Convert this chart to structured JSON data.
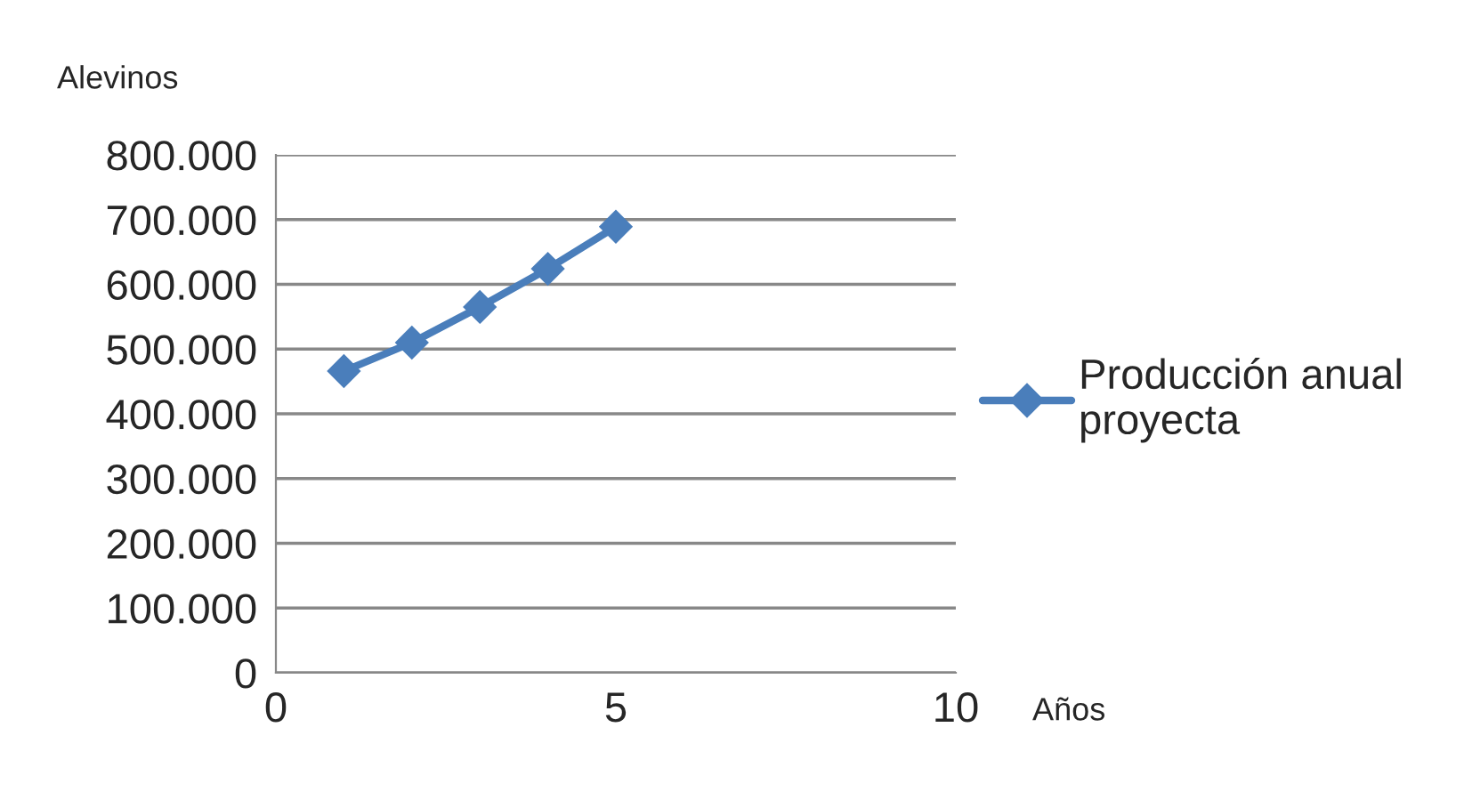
{
  "chart_data": {
    "type": "line",
    "xlabel": "Años",
    "ylabel": "Alevinos",
    "series": [
      {
        "name": "Producción anual proyecta",
        "color": "#4a7ebb",
        "x": [
          1,
          2,
          3,
          4,
          5
        ],
        "values": [
          466000,
          510000,
          565000,
          624000,
          689000
        ]
      }
    ],
    "xlim": [
      0,
      10
    ],
    "xticks": [
      0,
      5,
      10
    ],
    "ylim": [
      0,
      800000
    ],
    "yticks": [
      {
        "value": 0,
        "label": "0"
      },
      {
        "value": 100000,
        "label": "100.000"
      },
      {
        "value": 200000,
        "label": "200.000"
      },
      {
        "value": 300000,
        "label": "300.000"
      },
      {
        "value": 400000,
        "label": "400.000"
      },
      {
        "value": 500000,
        "label": "500.000"
      },
      {
        "value": 600000,
        "label": "600.000"
      },
      {
        "value": 700000,
        "label": "700.000"
      },
      {
        "value": 800000,
        "label": "800.000"
      }
    ],
    "grid": "y",
    "legend": "right",
    "marker": "diamond",
    "line_style": "solid"
  }
}
